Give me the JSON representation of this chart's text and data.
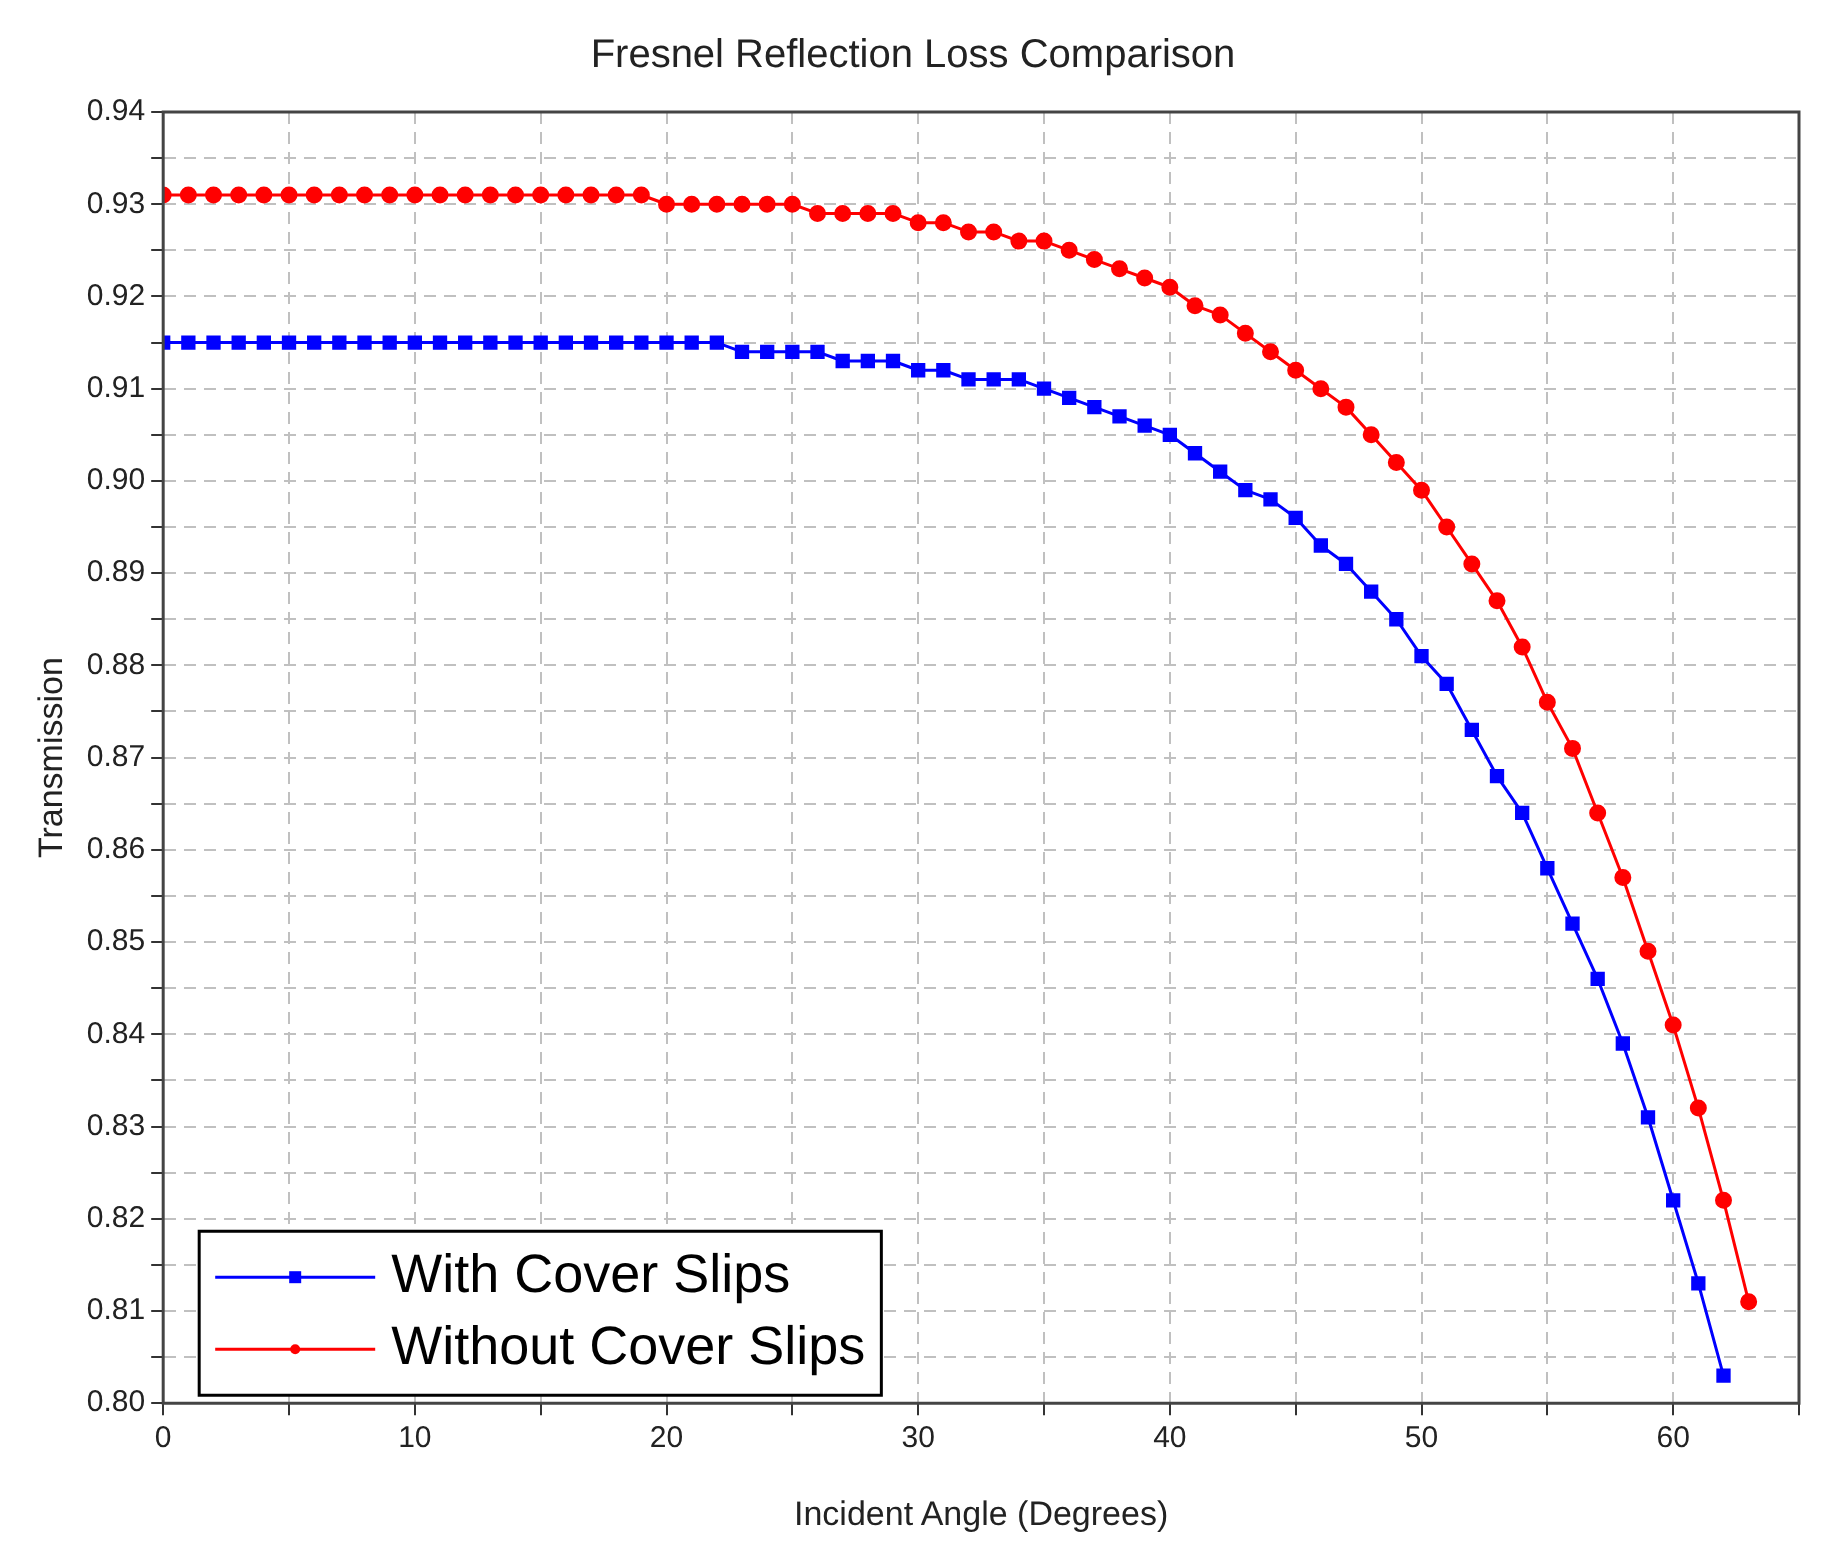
{
  "chart_data": {
    "type": "line",
    "title": "Fresnel Reflection Loss Comparison",
    "xlabel": "Incident Angle (Degrees)",
    "ylabel": "Transmission",
    "x": [
      0,
      1,
      2,
      3,
      4,
      5,
      6,
      7,
      8,
      9,
      10,
      11,
      12,
      13,
      14,
      15,
      16,
      17,
      18,
      19,
      20,
      21,
      22,
      23,
      24,
      25,
      26,
      27,
      28,
      29,
      30,
      31,
      32,
      33,
      34,
      35,
      36,
      37,
      38,
      39,
      40,
      41,
      42,
      43,
      44,
      45,
      46,
      47,
      48,
      49,
      50,
      51,
      52,
      53,
      54,
      55,
      56,
      57,
      58,
      59,
      60,
      61,
      62,
      63
    ],
    "series": [
      {
        "name": "With Cover Slips",
        "color": "#0000ff",
        "marker": "square",
        "values": [
          0.915,
          0.915,
          0.915,
          0.915,
          0.915,
          0.915,
          0.915,
          0.915,
          0.915,
          0.915,
          0.915,
          0.915,
          0.915,
          0.915,
          0.915,
          0.915,
          0.915,
          0.915,
          0.915,
          0.915,
          0.915,
          0.915,
          0.915,
          0.914,
          0.914,
          0.914,
          0.914,
          0.913,
          0.913,
          0.913,
          0.912,
          0.912,
          0.911,
          0.911,
          0.911,
          0.91,
          0.909,
          0.908,
          0.907,
          0.906,
          0.905,
          0.903,
          0.901,
          0.899,
          0.898,
          0.896,
          0.893,
          0.891,
          0.888,
          0.885,
          0.881,
          0.878,
          0.873,
          0.868,
          0.864,
          0.858,
          0.852,
          0.846,
          0.839,
          0.831,
          0.822,
          0.813,
          0.803,
          null
        ]
      },
      {
        "name": "Without Cover Slips",
        "color": "#ff0000",
        "marker": "circle",
        "values": [
          0.931,
          0.931,
          0.931,
          0.931,
          0.931,
          0.931,
          0.931,
          0.931,
          0.931,
          0.931,
          0.931,
          0.931,
          0.931,
          0.931,
          0.931,
          0.931,
          0.931,
          0.931,
          0.931,
          0.931,
          0.93,
          0.93,
          0.93,
          0.93,
          0.93,
          0.93,
          0.929,
          0.929,
          0.929,
          0.929,
          0.928,
          0.928,
          0.927,
          0.927,
          0.926,
          0.926,
          0.925,
          0.924,
          0.923,
          0.922,
          0.921,
          0.919,
          0.918,
          0.916,
          0.914,
          0.912,
          0.91,
          0.908,
          0.905,
          0.902,
          0.899,
          0.895,
          0.891,
          0.887,
          0.882,
          0.876,
          0.871,
          0.864,
          0.857,
          0.849,
          0.841,
          0.832,
          0.822,
          0.811
        ]
      }
    ],
    "xlim": [
      0,
      65
    ],
    "xticks": [
      0,
      {
        "value": 5,
        "label": null
      },
      10,
      {
        "value": 15,
        "label": null
      },
      20,
      {
        "value": 25,
        "label": null
      },
      30,
      {
        "value": 35,
        "label": null
      },
      40,
      {
        "value": 45,
        "label": null
      },
      50,
      {
        "value": 55,
        "label": null
      },
      60,
      {
        "value": 65,
        "label": null
      }
    ],
    "ylim": [
      0.8,
      0.94
    ],
    "yticks": [
      {
        "value": 0.8,
        "label": "0.80"
      },
      {
        "value": 0.805,
        "label": null
      },
      {
        "value": 0.81,
        "label": "0.81"
      },
      {
        "value": 0.815,
        "label": null
      },
      {
        "value": 0.82,
        "label": "0.82"
      },
      {
        "value": 0.825,
        "label": null
      },
      {
        "value": 0.83,
        "label": "0.83"
      },
      {
        "value": 0.835,
        "label": null
      },
      {
        "value": 0.84,
        "label": "0.84"
      },
      {
        "value": 0.845,
        "label": null
      },
      {
        "value": 0.85,
        "label": "0.85"
      },
      {
        "value": 0.855,
        "label": null
      },
      {
        "value": 0.86,
        "label": "0.86"
      },
      {
        "value": 0.865,
        "label": null
      },
      {
        "value": 0.87,
        "label": "0.87"
      },
      {
        "value": 0.875,
        "label": null
      },
      {
        "value": 0.88,
        "label": "0.88"
      },
      {
        "value": 0.885,
        "label": null
      },
      {
        "value": 0.89,
        "label": "0.89"
      },
      {
        "value": 0.895,
        "label": null
      },
      {
        "value": 0.9,
        "label": "0.90"
      },
      {
        "value": 0.905,
        "label": null
      },
      {
        "value": 0.91,
        "label": "0.91"
      },
      {
        "value": 0.915,
        "label": null
      },
      {
        "value": 0.92,
        "label": "0.92"
      },
      {
        "value": 0.925,
        "label": null
      },
      {
        "value": 0.93,
        "label": "0.93"
      },
      {
        "value": 0.935,
        "label": null
      },
      {
        "value": 0.94,
        "label": "0.94"
      }
    ],
    "grid": true,
    "legend": "bottom left",
    "line_style": "solid"
  }
}
